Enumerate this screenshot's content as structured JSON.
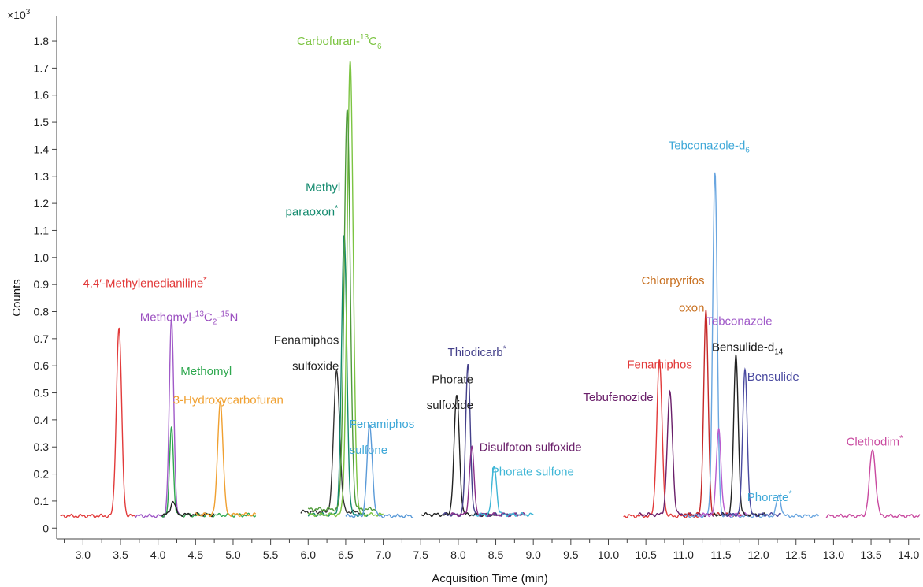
{
  "chart_data": {
    "type": "line",
    "title": "",
    "xlabel": "Acquisition Time (min)",
    "ylabel": "Counts",
    "y_multiplier_label": "×10",
    "y_multiplier_exp": "3",
    "xlim": [
      2.65,
      14.15
    ],
    "ylim": [
      -0.04,
      1.87
    ],
    "x_ticks": [
      "3.0",
      "3.5",
      "4.0",
      "4.5",
      "5.0",
      "5.5",
      "6.0",
      "6.5",
      "7.0",
      "7.5",
      "8.0",
      "8.5",
      "9.0",
      "9.5",
      "10.0",
      "10.5",
      "11.0",
      "11.5",
      "12.0",
      "12.5",
      "13.0",
      "13.5",
      "14.0"
    ],
    "y_ticks": [
      "0",
      "0.1",
      "0.2",
      "0.3",
      "0.4",
      "0.5",
      "0.6",
      "0.7",
      "0.8",
      "0.9",
      "1.0",
      "1.1",
      "1.2",
      "1.3",
      "1.4",
      "1.5",
      "1.6",
      "1.7",
      "1.8"
    ],
    "grid": false,
    "series": [
      {
        "color": "#e23a3a",
        "range": [
          2.7,
          3.7
        ],
        "baseline": 0.045,
        "peaks": [
          [
            3.48,
            0.74,
            0.035
          ]
        ]
      },
      {
        "color": "#a05ac8",
        "range": [
          3.7,
          4.3
        ],
        "baseline": 0.045,
        "peaks": [
          [
            4.18,
            0.77,
            0.03
          ]
        ]
      },
      {
        "color": "#2fa84f",
        "range": [
          4.05,
          5.3
        ],
        "baseline": 0.048,
        "peaks": [
          [
            4.18,
            0.38,
            0.025
          ]
        ]
      },
      {
        "color": "#222222",
        "range": [
          4.05,
          4.75
        ],
        "baseline": 0.05,
        "peaks": [
          [
            4.2,
            0.1,
            0.03
          ]
        ]
      },
      {
        "color": "#f0a030",
        "range": [
          4.5,
          5.3
        ],
        "baseline": 0.05,
        "peaks": [
          [
            4.83,
            0.47,
            0.035
          ]
        ]
      },
      {
        "color": "#333333",
        "range": [
          5.9,
          6.7
        ],
        "baseline": 0.06,
        "peaks": [
          [
            6.38,
            0.58,
            0.04
          ]
        ]
      },
      {
        "color": "#138a6e",
        "range": [
          6.0,
          6.8
        ],
        "baseline": 0.05,
        "peaks": [
          [
            6.48,
            1.08,
            0.035
          ]
        ]
      },
      {
        "color": "#7cc442",
        "range": [
          6.0,
          7.0
        ],
        "baseline": 0.05,
        "peaks": [
          [
            6.56,
            1.72,
            0.04
          ]
        ]
      },
      {
        "color": "#4f9a3a",
        "range": [
          6.0,
          6.9
        ],
        "baseline": 0.07,
        "peaks": [
          [
            6.52,
            1.55,
            0.04
          ]
        ]
      },
      {
        "color": "#5a9ad8",
        "range": [
          6.5,
          7.4
        ],
        "baseline": 0.045,
        "peaks": [
          [
            6.82,
            0.38,
            0.035
          ]
        ]
      },
      {
        "color": "#222222",
        "range": [
          7.5,
          8.5
        ],
        "baseline": 0.05,
        "peaks": [
          [
            7.98,
            0.49,
            0.035
          ]
        ]
      },
      {
        "color": "#44408a",
        "range": [
          7.8,
          8.8
        ],
        "baseline": 0.05,
        "peaks": [
          [
            8.13,
            0.61,
            0.03
          ]
        ]
      },
      {
        "color": "#8a2f8a",
        "range": [
          7.9,
          8.9
        ],
        "baseline": 0.05,
        "peaks": [
          [
            8.18,
            0.3,
            0.03
          ]
        ]
      },
      {
        "color": "#3fb6d6",
        "range": [
          8.2,
          9.0
        ],
        "baseline": 0.05,
        "peaks": [
          [
            8.48,
            0.23,
            0.03
          ]
        ]
      },
      {
        "color": "#e23a3a",
        "range": [
          10.2,
          11.2
        ],
        "baseline": 0.045,
        "peaks": [
          [
            10.68,
            0.62,
            0.035
          ]
        ]
      },
      {
        "color": "#6a1f6a",
        "range": [
          10.4,
          11.4
        ],
        "baseline": 0.05,
        "peaks": [
          [
            10.82,
            0.5,
            0.035
          ]
        ]
      },
      {
        "color": "#c62828",
        "range": [
          11.0,
          11.8
        ],
        "baseline": 0.05,
        "peaks": [
          [
            11.3,
            0.8,
            0.03
          ]
        ]
      },
      {
        "color": "#6aa6e0",
        "range": [
          11.0,
          12.8
        ],
        "baseline": 0.045,
        "peaks": [
          [
            11.42,
            1.32,
            0.03
          ],
          [
            12.27,
            0.12,
            0.03
          ]
        ]
      },
      {
        "color": "#b85ccf",
        "range": [
          11.2,
          11.9
        ],
        "baseline": 0.05,
        "peaks": [
          [
            11.47,
            0.37,
            0.03
          ]
        ]
      },
      {
        "color": "#222222",
        "range": [
          11.4,
          12.1
        ],
        "baseline": 0.05,
        "peaks": [
          [
            11.7,
            0.64,
            0.03
          ]
        ]
      },
      {
        "color": "#4a4aa0",
        "range": [
          11.5,
          12.3
        ],
        "baseline": 0.05,
        "peaks": [
          [
            11.82,
            0.59,
            0.03
          ]
        ]
      },
      {
        "color": "#c94aa0",
        "range": [
          12.9,
          14.15
        ],
        "baseline": 0.045,
        "peaks": [
          [
            13.52,
            0.29,
            0.04
          ]
        ]
      }
    ],
    "annotations": [
      {
        "text": "4,4′-Methylenedianiline",
        "sup": "*",
        "sub": "",
        "sup2": "",
        "color": "#e23a3a",
        "x": 3.0,
        "y": 0.89,
        "anchor": "start"
      },
      {
        "text": "Methomyl-",
        "sup": "13",
        "sub": "",
        "sup2": "",
        "color": "#9b4fc0",
        "x": 3.76,
        "y": 0.765,
        "anchor": "start",
        "rich": "methomyl"
      },
      {
        "text": "Methomyl",
        "sup": "",
        "sub": "",
        "sup2": "",
        "color": "#2fa84f",
        "x": 4.3,
        "y": 0.565,
        "anchor": "start"
      },
      {
        "text": "3-Hydroxycarbofuran",
        "sup": "",
        "sub": "",
        "sup2": "",
        "color": "#f0a030",
        "x": 4.2,
        "y": 0.46,
        "anchor": "start"
      },
      {
        "text": "Carbofuran-",
        "sup": "13",
        "sub": "6",
        "sup2": "",
        "color": "#7cc442",
        "x": 5.85,
        "y": 1.785,
        "anchor": "start",
        "rich": "carbofuran"
      },
      {
        "text": "Methyl",
        "sup": "",
        "sub": "",
        "sup2": "",
        "color": "#138a6e",
        "x": 6.43,
        "y": 1.245,
        "anchor": "end"
      },
      {
        "text": "paraoxon",
        "sup": "*",
        "sub": "",
        "sup2": "",
        "color": "#138a6e",
        "x": 6.4,
        "y": 1.155,
        "anchor": "end"
      },
      {
        "text": "Fenamiphos",
        "sup": "",
        "sub": "",
        "sup2": "",
        "color": "#222222",
        "x": 6.41,
        "y": 0.68,
        "anchor": "end"
      },
      {
        "text": "sulfoxide",
        "sup": "",
        "sub": "",
        "sup2": "",
        "color": "#222222",
        "x": 6.41,
        "y": 0.585,
        "anchor": "end"
      },
      {
        "text": "Fenamiphos",
        "sup": "",
        "sub": "",
        "sup2": "",
        "color": "#3fa8d8",
        "x": 6.55,
        "y": 0.37,
        "anchor": "start"
      },
      {
        "text": "sulfone",
        "sup": "",
        "sub": "",
        "sup2": "",
        "color": "#3fa8d8",
        "x": 6.55,
        "y": 0.275,
        "anchor": "start"
      },
      {
        "text": "Thiodicarb",
        "sup": "*",
        "sub": "",
        "sup2": "",
        "color": "#44408a",
        "x": 7.86,
        "y": 0.635,
        "anchor": "start"
      },
      {
        "text": "Phorate",
        "sup": "",
        "sub": "",
        "sup2": "",
        "color": "#222222",
        "x": 8.2,
        "y": 0.535,
        "anchor": "end"
      },
      {
        "text": "sulfoxide",
        "sup": "",
        "sub": "",
        "sup2": "",
        "color": "#222222",
        "x": 8.2,
        "y": 0.44,
        "anchor": "end"
      },
      {
        "text": "Disulfoton sulfoxide",
        "sup": "",
        "sub": "",
        "sup2": "",
        "color": "#6a1f6a",
        "x": 8.28,
        "y": 0.285,
        "anchor": "start"
      },
      {
        "text": "Phorate sulfone",
        "sup": "",
        "sub": "",
        "sup2": "",
        "color": "#3fb6d6",
        "x": 8.44,
        "y": 0.195,
        "anchor": "start"
      },
      {
        "text": "Tebconazole-d",
        "sup": "",
        "sub": "6",
        "sup2": "",
        "color": "#3fa8d8",
        "x": 10.8,
        "y": 1.4,
        "anchor": "start"
      },
      {
        "text": "Chlorpyrifos",
        "sup": "",
        "sub": "",
        "sup2": "",
        "color": "#c87020",
        "x": 11.28,
        "y": 0.9,
        "anchor": "end"
      },
      {
        "text": "oxon",
        "sup": "",
        "sub": "",
        "sup2": "",
        "color": "#c87020",
        "x": 11.28,
        "y": 0.8,
        "anchor": "end"
      },
      {
        "text": "Tebconazole",
        "sup": "",
        "sub": "",
        "sup2": "",
        "color": "#a05ac8",
        "x": 11.3,
        "y": 0.75,
        "anchor": "start"
      },
      {
        "text": "Bensulide-d",
        "sup": "",
        "sub": "14",
        "sup2": "",
        "color": "#111111",
        "x": 11.38,
        "y": 0.655,
        "anchor": "start"
      },
      {
        "text": "Fenamiphos",
        "sup": "",
        "sub": "",
        "sup2": "",
        "color": "#e23a3a",
        "x": 10.25,
        "y": 0.59,
        "anchor": "start"
      },
      {
        "text": "Bensulide",
        "sup": "",
        "sub": "",
        "sup2": "",
        "color": "#4a4aa0",
        "x": 11.85,
        "y": 0.545,
        "anchor": "start"
      },
      {
        "text": "Tebufenozide",
        "sup": "",
        "sub": "",
        "sup2": "",
        "color": "#6a1f6a",
        "x": 10.6,
        "y": 0.47,
        "anchor": "end"
      },
      {
        "text": "Phorate",
        "sup": "*",
        "sub": "",
        "sup2": "",
        "color": "#3fa8d8",
        "x": 11.85,
        "y": 0.1,
        "anchor": "start"
      },
      {
        "text": "Clethodim",
        "sup": "*",
        "sub": "",
        "sup2": "",
        "color": "#c94aa0",
        "x": 13.17,
        "y": 0.305,
        "anchor": "start"
      }
    ],
    "methomyl_rich": {
      "part1": "Methomyl-",
      "sup1": "13",
      "mid": "C",
      "sub1": "2",
      "mid2": "-",
      "sup2": "15",
      "end": "N"
    },
    "carbofuran_rich": {
      "part1": "Carbofuran-",
      "sup1": "13",
      "mid": "C",
      "sub1": "6"
    }
  }
}
